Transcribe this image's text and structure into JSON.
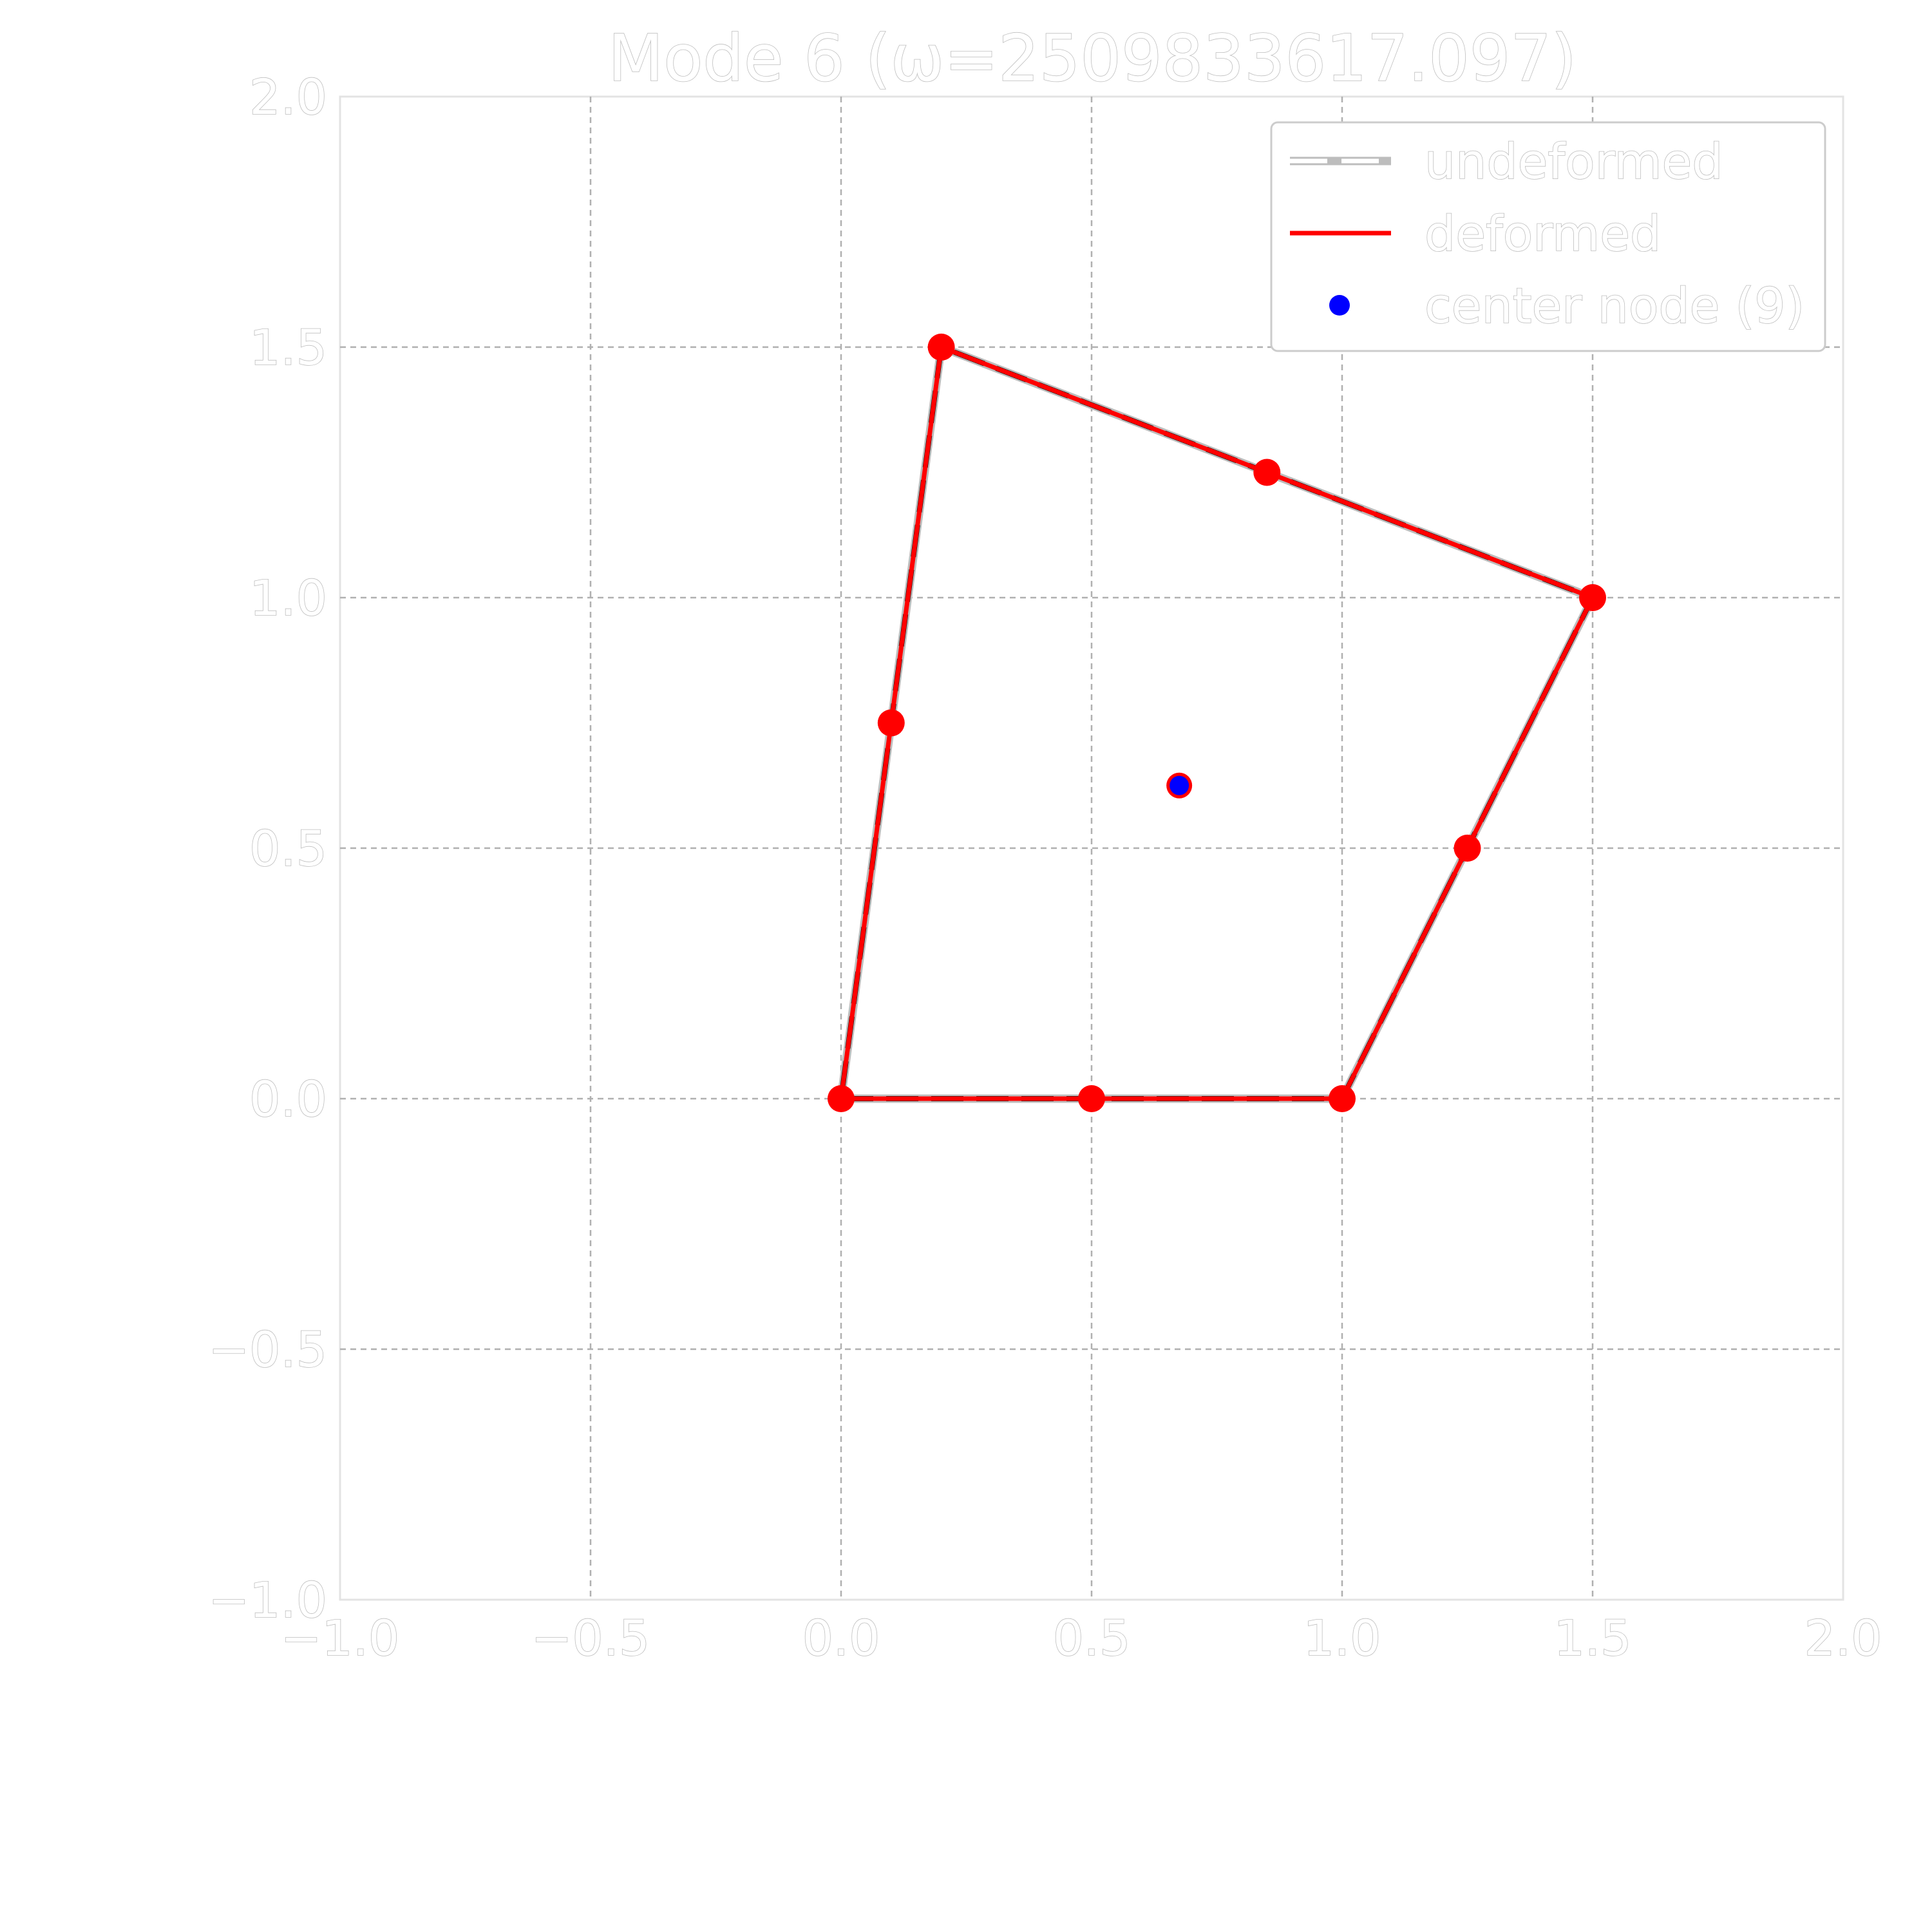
{
  "chart_data": {
    "type": "line",
    "title": "Mode 6 (ω=2509833617.097)",
    "xlabel": "",
    "ylabel": "",
    "xlim": [
      -1.0,
      2.0
    ],
    "ylim": [
      -1.0,
      2.0
    ],
    "xticks": [
      -1.0,
      -0.5,
      0.0,
      0.5,
      1.0,
      1.5,
      2.0
    ],
    "yticks": [
      -1.0,
      -0.5,
      0.0,
      0.5,
      1.0,
      1.5,
      2.0
    ],
    "xtick_labels": [
      "−1.0",
      "−0.5",
      "0.0",
      "0.5",
      "1.0",
      "1.5",
      "2.0"
    ],
    "ytick_labels": [
      "−1.0",
      "−0.5",
      "0.0",
      "0.5",
      "1.0",
      "1.5",
      "2.0"
    ],
    "grid": true,
    "legend_position": "top-right",
    "legend": [
      {
        "label": "undeformed",
        "style": "dashed",
        "color": "#000000"
      },
      {
        "label": "deformed",
        "style": "solid",
        "color": "#ff0000"
      },
      {
        "label": "center node (9)",
        "style": "marker",
        "color": "#0000ff"
      }
    ],
    "series": [
      {
        "name": "undeformed",
        "color": "#000000",
        "style": "dashed",
        "x": [
          0.0,
          0.5,
          1.0,
          1.25,
          1.5,
          0.85,
          0.2,
          0.1,
          0.0
        ],
        "y": [
          0.0,
          0.0,
          0.0,
          0.5,
          1.0,
          1.25,
          1.5,
          0.75,
          0.0
        ]
      },
      {
        "name": "deformed",
        "color": "#ff0000",
        "style": "solid",
        "markers": true,
        "x": [
          0.0,
          0.5,
          1.0,
          1.25,
          1.5,
          0.85,
          0.2,
          0.1,
          0.0
        ],
        "y": [
          0.0,
          0.0,
          0.0,
          0.5,
          1.0,
          1.25,
          1.5,
          0.75,
          0.0
        ]
      },
      {
        "name": "center node (9)",
        "color": "#0000ff",
        "style": "marker",
        "x": [
          0.675
        ],
        "y": [
          0.625
        ]
      }
    ]
  }
}
